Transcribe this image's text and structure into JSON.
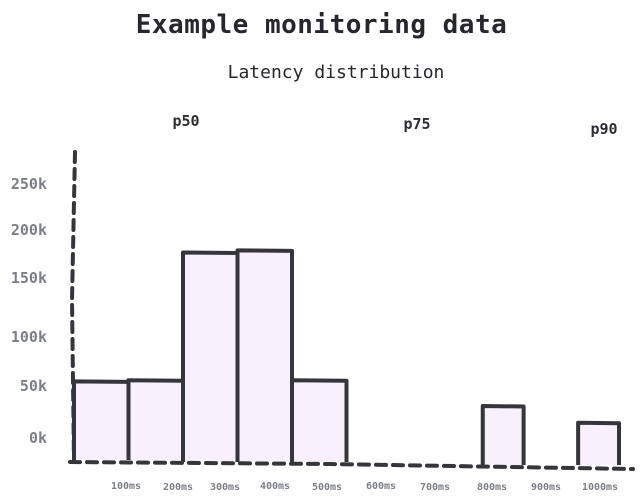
{
  "chart_data": {
    "type": "bar",
    "title": "Example monitoring data",
    "subtitle": "Latency distribution",
    "categories": [
      "100ms",
      "200ms",
      "300ms",
      "400ms",
      "500ms",
      "600ms",
      "700ms",
      "800ms",
      "900ms",
      "1000ms"
    ],
    "y_ticks": [
      "0k",
      "50k",
      "100k",
      "150k",
      "200k",
      "250k"
    ],
    "ylim": [
      0,
      250000
    ],
    "bars": [
      {
        "start": 0,
        "end": 100,
        "value": 72000
      },
      {
        "start": 100,
        "end": 200,
        "value": 73000
      },
      {
        "start": 200,
        "end": 300,
        "value": 187000
      },
      {
        "start": 300,
        "end": 400,
        "value": 189000
      },
      {
        "start": 400,
        "end": 500,
        "value": 73000
      },
      {
        "start": 750,
        "end": 825,
        "value": 50000
      },
      {
        "start": 925,
        "end": 1000,
        "value": 35000
      }
    ],
    "percentiles": [
      {
        "label": "p50",
        "value": 230
      },
      {
        "label": "p75",
        "value": 680
      },
      {
        "label": "p90",
        "value": 1000
      }
    ],
    "grid": false,
    "legend": "none"
  }
}
